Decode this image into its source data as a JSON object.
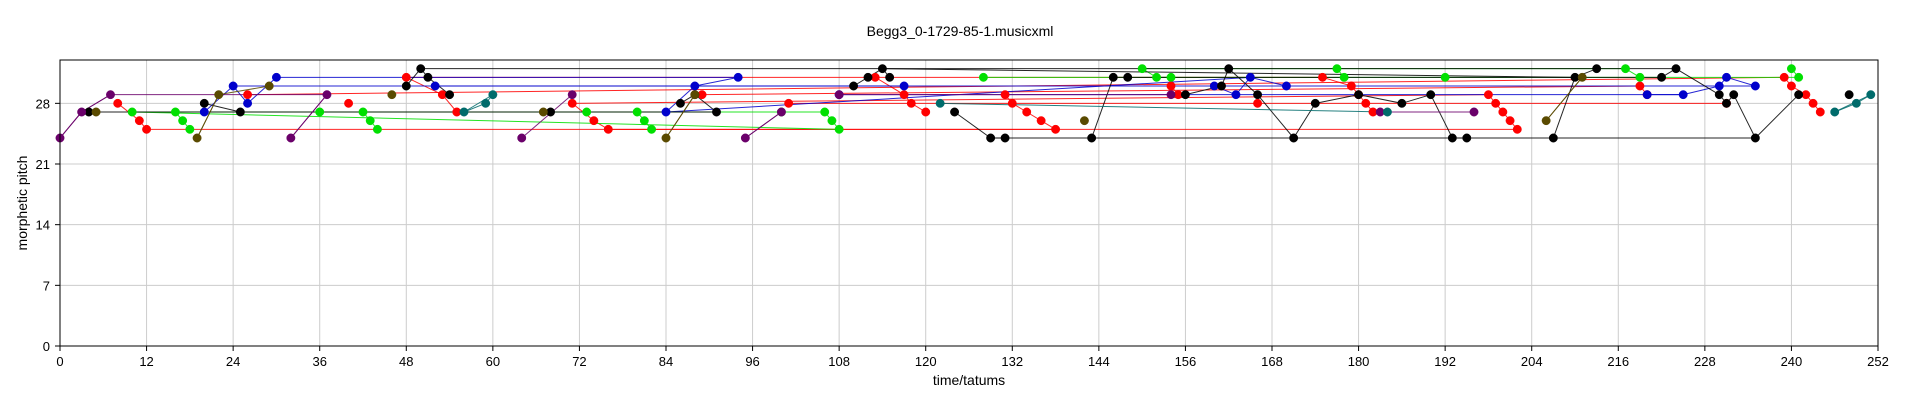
{
  "chart_data": {
    "type": "scatter",
    "title": "Begg3_0-1729-85-1.musicxml",
    "xlabel": "time/tatums",
    "ylabel": "morphetic pitch",
    "xlim": [
      0,
      252
    ],
    "ylim": [
      0,
      33
    ],
    "xticks": [
      0,
      12,
      24,
      36,
      48,
      60,
      72,
      84,
      96,
      108,
      120,
      132,
      144,
      156,
      168,
      180,
      192,
      204,
      216,
      228,
      240,
      252
    ],
    "yticks": [
      0,
      7,
      14,
      21,
      28
    ],
    "grid": true,
    "colors": {
      "red": "#ff0000",
      "blue": "#0000cc",
      "green": "#00e000",
      "black": "#000000",
      "purple": "#6a006a",
      "olive": "#5a4a00",
      "teal": "#006b6b"
    },
    "series": [
      {
        "color": "red",
        "points": [
          [
            8,
            28
          ],
          [
            11,
            26
          ],
          [
            12,
            25
          ],
          [
            26,
            29
          ],
          [
            40,
            28
          ],
          [
            48,
            31
          ],
          [
            53,
            29
          ],
          [
            55,
            27
          ],
          [
            71,
            28
          ],
          [
            74,
            26
          ],
          [
            76,
            25
          ],
          [
            89,
            29
          ],
          [
            101,
            28
          ],
          [
            113,
            31
          ],
          [
            117,
            29
          ],
          [
            118,
            28
          ],
          [
            120,
            27
          ],
          [
            131,
            29
          ],
          [
            132,
            28
          ],
          [
            134,
            27
          ],
          [
            136,
            26
          ],
          [
            138,
            25
          ],
          [
            154,
            30
          ],
          [
            155,
            29
          ],
          [
            166,
            28
          ],
          [
            175,
            31
          ],
          [
            179,
            30
          ],
          [
            180,
            29
          ],
          [
            181,
            28
          ],
          [
            182,
            27
          ],
          [
            198,
            29
          ],
          [
            199,
            28
          ],
          [
            200,
            27
          ],
          [
            201,
            26
          ],
          [
            202,
            25
          ],
          [
            219,
            30
          ],
          [
            220,
            29
          ],
          [
            231,
            28
          ],
          [
            239,
            31
          ],
          [
            240,
            30
          ],
          [
            242,
            29
          ],
          [
            243,
            28
          ],
          [
            244,
            27
          ]
        ],
        "links": [
          [
            8,
            241
          ],
          [
            48,
            175
          ],
          [
            71,
            198
          ],
          [
            89,
            219
          ],
          [
            26,
            239
          ],
          [
            12,
            138
          ],
          [
            76,
            202
          ],
          [
            101,
            231
          ]
        ]
      },
      {
        "color": "blue",
        "points": [
          [
            20,
            27
          ],
          [
            24,
            30
          ],
          [
            26,
            28
          ],
          [
            30,
            31
          ],
          [
            52,
            30
          ],
          [
            84,
            27
          ],
          [
            88,
            30
          ],
          [
            94,
            31
          ],
          [
            108,
            29
          ],
          [
            117,
            30
          ],
          [
            160,
            30
          ],
          [
            163,
            29
          ],
          [
            165,
            31
          ],
          [
            170,
            30
          ],
          [
            220,
            29
          ],
          [
            225,
            29
          ],
          [
            230,
            30
          ],
          [
            231,
            31
          ],
          [
            235,
            30
          ]
        ],
        "links": [
          [
            30,
            94
          ],
          [
            24,
            117
          ],
          [
            52,
            235
          ],
          [
            84,
            165
          ],
          [
            108,
            225
          ]
        ]
      },
      {
        "color": "green",
        "points": [
          [
            10,
            27
          ],
          [
            16,
            27
          ],
          [
            17,
            26
          ],
          [
            18,
            25
          ],
          [
            36,
            27
          ],
          [
            42,
            27
          ],
          [
            43,
            26
          ],
          [
            44,
            25
          ],
          [
            73,
            27
          ],
          [
            80,
            27
          ],
          [
            81,
            26
          ],
          [
            82,
            25
          ],
          [
            100,
            27
          ],
          [
            106,
            27
          ],
          [
            107,
            26
          ],
          [
            108,
            25
          ],
          [
            128,
            31
          ],
          [
            150,
            32
          ],
          [
            152,
            31
          ],
          [
            154,
            31
          ],
          [
            177,
            32
          ],
          [
            178,
            31
          ],
          [
            192,
            31
          ],
          [
            217,
            32
          ],
          [
            219,
            31
          ],
          [
            240,
            32
          ],
          [
            241,
            31
          ]
        ],
        "links": [
          [
            10,
            108
          ],
          [
            128,
            241
          ],
          [
            36,
            100
          ],
          [
            150,
            217
          ],
          [
            16,
            80
          ]
        ]
      },
      {
        "color": "black",
        "points": [
          [
            4,
            27
          ],
          [
            20,
            28
          ],
          [
            25,
            27
          ],
          [
            48,
            30
          ],
          [
            50,
            32
          ],
          [
            51,
            31
          ],
          [
            54,
            29
          ],
          [
            68,
            27
          ],
          [
            86,
            28
          ],
          [
            88,
            29
          ],
          [
            91,
            27
          ],
          [
            110,
            30
          ],
          [
            112,
            31
          ],
          [
            114,
            32
          ],
          [
            115,
            31
          ],
          [
            124,
            27
          ],
          [
            146,
            31
          ],
          [
            148,
            31
          ],
          [
            156,
            29
          ],
          [
            161,
            30
          ],
          [
            162,
            32
          ],
          [
            166,
            29
          ],
          [
            174,
            28
          ],
          [
            180,
            29
          ],
          [
            186,
            28
          ],
          [
            190,
            29
          ],
          [
            210,
            31
          ],
          [
            213,
            32
          ],
          [
            222,
            31
          ],
          [
            224,
            32
          ],
          [
            230,
            29
          ],
          [
            231,
            28
          ],
          [
            232,
            29
          ],
          [
            241,
            29
          ],
          [
            248,
            29
          ],
          [
            129,
            24
          ],
          [
            131,
            24
          ],
          [
            143,
            24
          ],
          [
            171,
            24
          ],
          [
            193,
            24
          ],
          [
            195,
            24
          ],
          [
            207,
            24
          ],
          [
            235,
            24
          ]
        ],
        "links": [
          [
            4,
            91
          ],
          [
            50,
            224
          ],
          [
            129,
            235
          ],
          [
            114,
            210
          ],
          [
            148,
            222
          ]
        ]
      },
      {
        "color": "purple",
        "points": [
          [
            0,
            24
          ],
          [
            3,
            27
          ],
          [
            7,
            29
          ],
          [
            32,
            24
          ],
          [
            37,
            29
          ],
          [
            64,
            24
          ],
          [
            71,
            29
          ],
          [
            95,
            24
          ],
          [
            100,
            27
          ],
          [
            108,
            29
          ],
          [
            154,
            29
          ],
          [
            183,
            27
          ],
          [
            196,
            27
          ]
        ],
        "links": [
          [
            0,
            3
          ],
          [
            3,
            7
          ],
          [
            7,
            37
          ],
          [
            32,
            37
          ],
          [
            64,
            71
          ],
          [
            95,
            100
          ],
          [
            108,
            154
          ],
          [
            183,
            196
          ]
        ]
      },
      {
        "color": "olive",
        "points": [
          [
            5,
            27
          ],
          [
            19,
            24
          ],
          [
            22,
            29
          ],
          [
            29,
            30
          ],
          [
            46,
            29
          ],
          [
            67,
            27
          ],
          [
            84,
            24
          ],
          [
            88,
            29
          ],
          [
            142,
            26
          ],
          [
            206,
            26
          ],
          [
            211,
            31
          ]
        ],
        "links": [
          [
            19,
            22
          ],
          [
            22,
            29
          ],
          [
            84,
            88
          ],
          [
            142,
            146
          ],
          [
            206,
            211
          ]
        ]
      },
      {
        "color": "teal",
        "points": [
          [
            56,
            27
          ],
          [
            59,
            28
          ],
          [
            60,
            29
          ],
          [
            122,
            28
          ],
          [
            184,
            27
          ],
          [
            246,
            27
          ],
          [
            249,
            28
          ],
          [
            251,
            29
          ]
        ],
        "links": [
          [
            56,
            60
          ],
          [
            122,
            184
          ],
          [
            246,
            251
          ]
        ]
      }
    ]
  }
}
